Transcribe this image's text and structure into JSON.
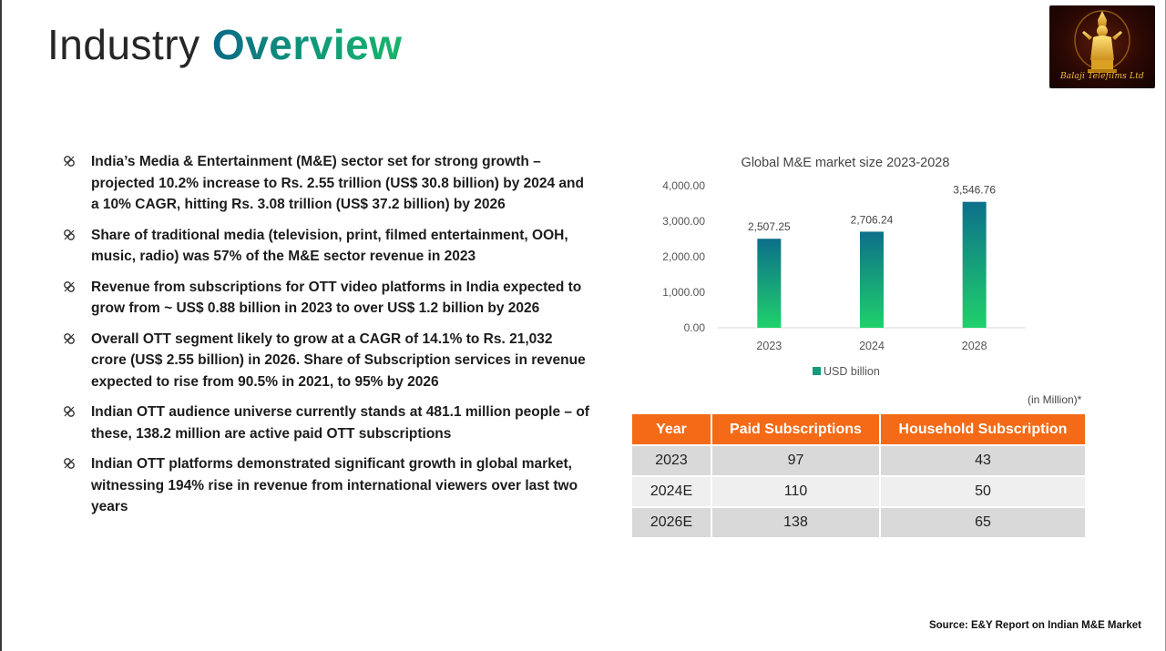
{
  "title": {
    "part1": "Industry ",
    "part2": "Overview"
  },
  "logo": {
    "text": "Balaji Telefilms Ltd",
    "icon": "deity-idol-icon"
  },
  "bullets": [
    "India’s Media & Entertainment (M&E) sector set for strong growth – projected 10.2% increase to Rs. 2.55 trillion (US$ 30.8 billion) by 2024 and a 10% CAGR, hitting Rs. 3.08 trillion (US$ 37.2 billion) by 2026",
    "Share of traditional media (television, print, filmed entertainment, OOH, music, radio) was 57% of the M&E sector revenue in 2023",
    "Revenue from subscriptions for OTT video platforms in India expected to grow from ~ US$ 0.88 billion in 2023 to over US$ 1.2 billion by 2026",
    "Overall OTT segment likely to grow at a CAGR of 14.1% to Rs. 21,032 crore (US$ 2.55 billion) in 2026. Share of Subscription services in revenue expected to rise from 90.5% in 2021, to 95% by 2026",
    "Indian OTT audience universe currently stands at 481.1 million people – of these, 138.2 million are active paid OTT subscriptions",
    "Indian OTT platforms demonstrated significant growth in global market, witnessing 194% rise in revenue from international viewers over last two years"
  ],
  "chart_data": {
    "type": "bar",
    "title": "Global M&E market size 2023-2028",
    "categories": [
      "2023",
      "2024",
      "2028"
    ],
    "values": [
      2507.25,
      2706.24,
      3546.76
    ],
    "data_labels": [
      "2,507.25",
      "2,706.24",
      "3,546.76"
    ],
    "series_name": "USD billion",
    "yticks": [
      "0.00",
      "1,000.00",
      "2,000.00",
      "3,000.00",
      "4,000.00"
    ],
    "ylim": [
      0,
      4000
    ],
    "xlabel": "",
    "ylabel": "",
    "legend_position": "bottom",
    "colors": {
      "bar_top": "#0d6f8a",
      "bar_bottom": "#1fd16b",
      "grid": "#d9d9d9"
    }
  },
  "table": {
    "unit_note": "(in Million)*",
    "headers": [
      "Year",
      "Paid Subscriptions",
      "Household Subscription"
    ],
    "rows": [
      [
        "2023",
        "97",
        "43"
      ],
      [
        "2024E",
        "110",
        "50"
      ],
      [
        "2026E",
        "138",
        "65"
      ]
    ],
    "header_color": "#f46a16"
  },
  "source": "Source: E&Y Report on Indian M&E Market"
}
